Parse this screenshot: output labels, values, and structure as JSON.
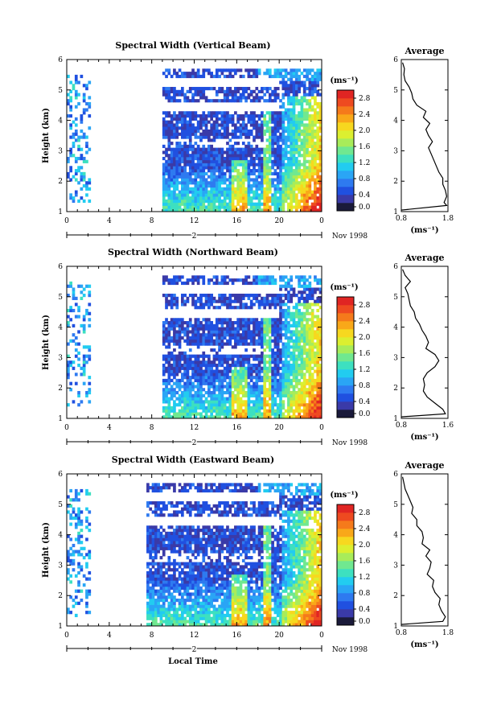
{
  "figure": {
    "date_label": "Nov 1998",
    "day_label": "2",
    "xlabel": "Local Time",
    "ylabel": "Height (km)",
    "colorbar_unit": "(ms⁻¹)",
    "profile_title": "Average",
    "profile_unit": "(ms⁻¹)"
  },
  "chart_data": [
    {
      "type": "heatmap",
      "title": "Spectral Width (Vertical Beam)",
      "xlabel": "Local Time",
      "ylabel": "Height (km)",
      "xlim": [
        0,
        24
      ],
      "ylim": [
        1,
        6
      ],
      "x_ticks": [
        "0",
        "4",
        "8",
        "12",
        "16",
        "20",
        "0"
      ],
      "y_ticks": [
        "1",
        "2",
        "3",
        "4",
        "5",
        "6"
      ],
      "colorbar": {
        "label": "(ms⁻¹)",
        "range": [
          0.0,
          3.0
        ],
        "tick_labels": [
          "0.0",
          "0.4",
          "0.8",
          "1.2",
          "1.6",
          "2.0",
          "2.4",
          "2.8"
        ],
        "colors": [
          "#1a1a3a",
          "#3a3aa8",
          "#2050e0",
          "#2e7af0",
          "#2aa5f5",
          "#22ccf0",
          "#3de0c0",
          "#70e890",
          "#a8ec5a",
          "#dcef30",
          "#f7d81f",
          "#f9a819",
          "#f57a1b",
          "#ee4a20",
          "#e02523"
        ]
      },
      "data_gaps_hours": [
        [
          2,
          9
        ]
      ],
      "average_profile": {
        "type": "line",
        "title": "Average",
        "xlabel": "(ms⁻¹)",
        "xlim": [
          0,
          1.8
        ],
        "ylim": [
          1,
          6
        ],
        "x_ticks": [
          "0.8",
          "1.8"
        ],
        "y_ticks": [
          "1",
          "2",
          "3",
          "4",
          "5",
          "6"
        ],
        "height_km": [
          1.05,
          1.2,
          1.3,
          1.5,
          1.7,
          1.9,
          2.1,
          2.3,
          2.5,
          2.7,
          2.9,
          3.1,
          3.3,
          3.5,
          3.7,
          3.9,
          4.1,
          4.3,
          4.5,
          4.7,
          4.9,
          5.1,
          5.3,
          5.5,
          5.7,
          5.9
        ],
        "width_ms": [
          0.0,
          1.75,
          1.65,
          1.75,
          1.7,
          1.6,
          1.6,
          1.45,
          1.35,
          1.25,
          1.15,
          1.05,
          1.2,
          1.05,
          0.95,
          1.1,
          0.85,
          0.95,
          0.6,
          0.45,
          0.4,
          0.3,
          0.15,
          0.1,
          0.12,
          0.05
        ]
      }
    },
    {
      "type": "heatmap",
      "title": "Spectral Width (Northward Beam)",
      "xlabel": "Local Time",
      "ylabel": "Height (km)",
      "xlim": [
        0,
        24
      ],
      "ylim": [
        1,
        6
      ],
      "x_ticks": [
        "0",
        "4",
        "8",
        "12",
        "16",
        "20",
        "0"
      ],
      "y_ticks": [
        "1",
        "2",
        "3",
        "4",
        "5",
        "6"
      ],
      "colorbar": {
        "label": "(ms⁻¹)",
        "range": [
          0.0,
          3.0
        ],
        "tick_labels": [
          "0.0",
          "0.4",
          "0.8",
          "1.2",
          "1.6",
          "2.0",
          "2.4",
          "2.8"
        ],
        "colors": [
          "#1a1a3a",
          "#3a3aa8",
          "#2050e0",
          "#2e7af0",
          "#2aa5f5",
          "#22ccf0",
          "#3de0c0",
          "#70e890",
          "#a8ec5a",
          "#dcef30",
          "#f7d81f",
          "#f9a819",
          "#f57a1b",
          "#ee4a20",
          "#e02523"
        ]
      },
      "data_gaps_hours": [
        [
          2,
          9
        ]
      ],
      "average_profile": {
        "type": "line",
        "title": "Average",
        "xlabel": "(ms⁻¹)",
        "xlim": [
          0,
          1.8
        ],
        "ylim": [
          1,
          6
        ],
        "x_ticks": [
          "0.8",
          "1.6"
        ],
        "y_ticks": [
          "1",
          "2",
          "3",
          "4",
          "5",
          "6"
        ],
        "height_km": [
          1.05,
          1.15,
          1.3,
          1.5,
          1.7,
          1.9,
          2.1,
          2.3,
          2.5,
          2.7,
          2.9,
          3.1,
          3.3,
          3.5,
          3.7,
          3.9,
          4.1,
          4.3,
          4.5,
          4.7,
          4.9,
          5.1,
          5.3,
          5.5,
          5.7,
          5.9
        ],
        "width_ms": [
          0.0,
          1.7,
          1.6,
          1.3,
          1.0,
          0.85,
          0.9,
          0.85,
          1.0,
          1.3,
          1.45,
          1.3,
          0.95,
          1.05,
          0.95,
          0.8,
          0.7,
          0.55,
          0.5,
          0.35,
          0.3,
          0.25,
          0.15,
          0.35,
          0.15,
          0.05
        ]
      }
    },
    {
      "type": "heatmap",
      "title": "Spectral Width (Eastward Beam)",
      "xlabel": "Local Time",
      "ylabel": "Height (km)",
      "xlim": [
        0,
        24
      ],
      "ylim": [
        1,
        6
      ],
      "x_ticks": [
        "0",
        "4",
        "8",
        "12",
        "16",
        "20",
        "0"
      ],
      "y_ticks": [
        "1",
        "2",
        "3",
        "4",
        "5",
        "6"
      ],
      "colorbar": {
        "label": "(ms⁻¹)",
        "range": [
          0.0,
          3.0
        ],
        "tick_labels": [
          "0.0",
          "0.4",
          "0.8",
          "1.2",
          "1.6",
          "2.0",
          "2.4",
          "2.8"
        ],
        "colors": [
          "#1a1a3a",
          "#3a3aa8",
          "#2050e0",
          "#2e7af0",
          "#2aa5f5",
          "#22ccf0",
          "#3de0c0",
          "#70e890",
          "#a8ec5a",
          "#dcef30",
          "#f7d81f",
          "#f9a819",
          "#f57a1b",
          "#ee4a20",
          "#e02523"
        ]
      },
      "data_gaps_hours": [
        [
          2,
          7.5
        ]
      ],
      "average_profile": {
        "type": "line",
        "title": "Average",
        "xlabel": "(ms⁻¹)",
        "xlim": [
          0,
          1.8
        ],
        "ylim": [
          1,
          6
        ],
        "x_ticks": [
          "0.8",
          "1.8"
        ],
        "y_ticks": [
          "1",
          "2",
          "3",
          "4",
          "5",
          "6"
        ],
        "height_km": [
          1.05,
          1.15,
          1.3,
          1.5,
          1.7,
          1.9,
          2.1,
          2.3,
          2.5,
          2.7,
          2.9,
          3.1,
          3.3,
          3.5,
          3.7,
          3.9,
          4.1,
          4.3,
          4.5,
          4.7,
          4.9,
          5.1,
          5.3,
          5.5,
          5.7,
          5.9
        ],
        "width_ms": [
          0.0,
          1.6,
          1.7,
          1.55,
          1.45,
          1.5,
          1.3,
          1.2,
          1.25,
          1.0,
          1.1,
          1.15,
          0.95,
          1.1,
          0.8,
          0.85,
          0.8,
          0.6,
          0.6,
          0.4,
          0.45,
          0.35,
          0.25,
          0.15,
          0.1,
          0.05
        ]
      }
    }
  ]
}
